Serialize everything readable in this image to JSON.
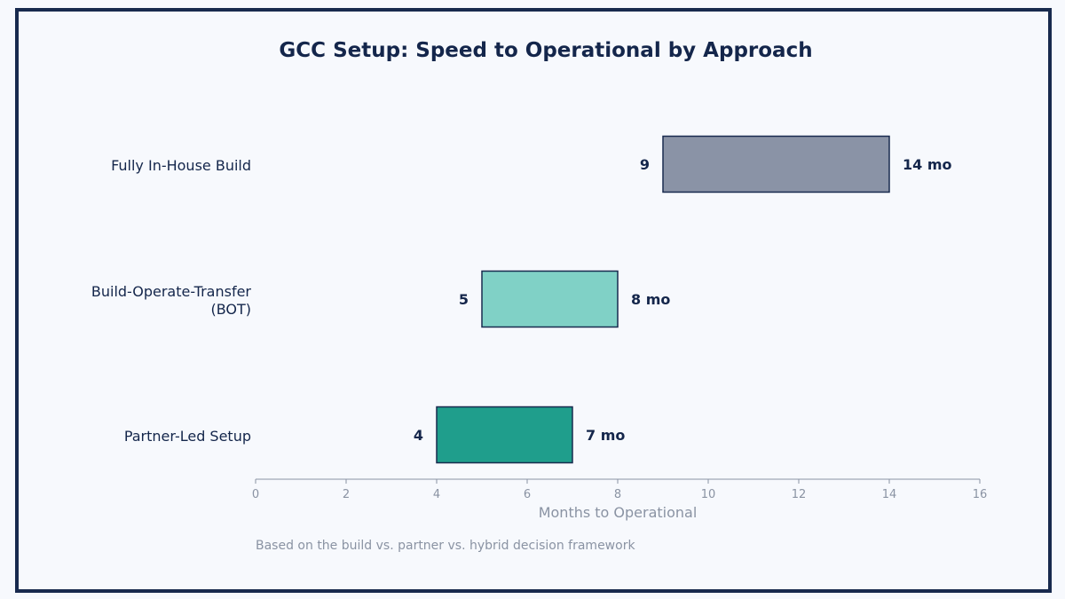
{
  "chart_data": {
    "type": "bar",
    "orientation": "horizontal",
    "title": "GCC Setup: Speed to Operational by Approach",
    "xlabel": "Months to Operational",
    "ylabel": "",
    "xlim": [
      0,
      16
    ],
    "xticks": [
      "0",
      "2",
      "4",
      "6",
      "8",
      "10",
      "12",
      "14",
      "16"
    ],
    "grid": false,
    "categories": [
      {
        "lines": [
          "Fully In-House Build"
        ],
        "start": 9,
        "end": 14,
        "start_label": "9",
        "end_label": "14 mo",
        "color": "#8a93a6"
      },
      {
        "lines": [
          "Build-Operate-Transfer",
          "(BOT)"
        ],
        "start": 5,
        "end": 8,
        "start_label": "5",
        "end_label": "8 mo",
        "color": "#80d1c6"
      },
      {
        "lines": [
          "Partner-Led Setup"
        ],
        "start": 4,
        "end": 7,
        "start_label": "4",
        "end_label": "7 mo",
        "color": "#1f9e8c"
      }
    ]
  },
  "footnote": "Based on the build vs. partner vs. hybrid decision framework",
  "colors": {
    "frame": "#182a4e",
    "title": "#14264b",
    "axis": "#8a93a3",
    "bar_edge": "#182a4e",
    "background": "#f7f9fd"
  }
}
